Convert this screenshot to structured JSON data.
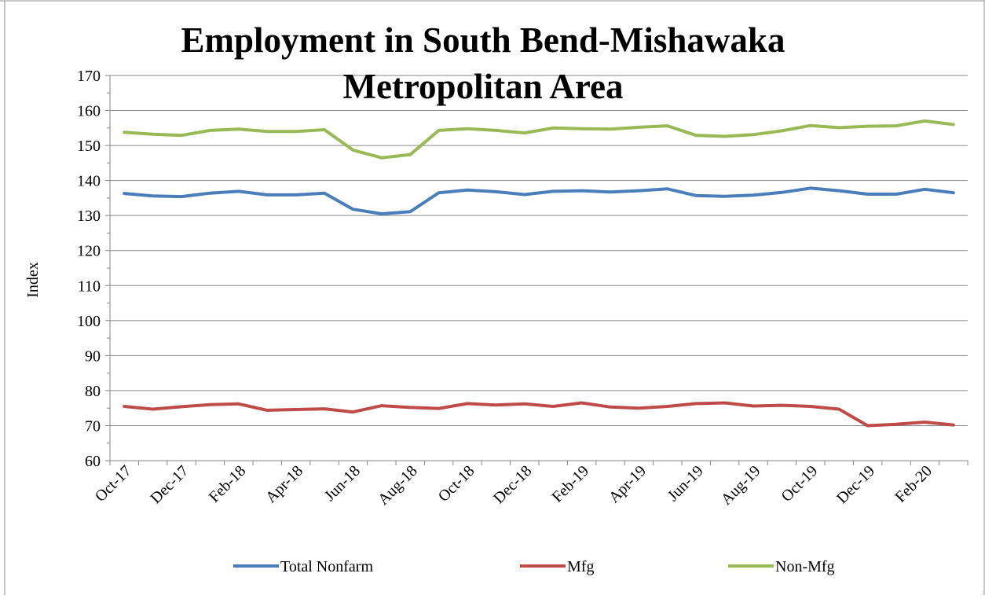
{
  "chart_data": {
    "type": "line",
    "title": "Employment in South Bend-Mishawaka Metropolitan Area",
    "title_lines": [
      "Employment in South Bend-Mishawaka",
      "Metropolitan Area"
    ],
    "ylabel": "Index",
    "xlabel": "",
    "ylim": [
      60,
      170
    ],
    "yticks": [
      60,
      70,
      80,
      90,
      100,
      110,
      120,
      130,
      140,
      150,
      160,
      170
    ],
    "grid": true,
    "legend_position": "bottom",
    "categories": [
      "Oct-17",
      "Nov-17",
      "Dec-17",
      "Jan-18",
      "Feb-18",
      "Mar-18",
      "Apr-18",
      "May-18",
      "Jun-18",
      "Jul-18",
      "Aug-18",
      "Sep-18",
      "Oct-18",
      "Nov-18",
      "Dec-18",
      "Jan-19",
      "Feb-19",
      "Mar-19",
      "Apr-19",
      "May-19",
      "Jun-19",
      "Jul-19",
      "Aug-19",
      "Sep-19",
      "Oct-19",
      "Nov-19",
      "Dec-19",
      "Jan-20",
      "Feb-20",
      "Mar-20"
    ],
    "x_tick_labels": [
      "Oct-17",
      "Dec-17",
      "Feb-18",
      "Apr-18",
      "Jun-18",
      "Aug-18",
      "Oct-18",
      "Dec-18",
      "Feb-19",
      "Apr-19",
      "Jun-19",
      "Aug-19",
      "Oct-19",
      "Dec-19",
      "Feb-20"
    ],
    "series": [
      {
        "name": "Total Nonfarm",
        "color": "#4a7ebb",
        "values": [
          136.3,
          135.6,
          135.4,
          136.4,
          136.9,
          135.9,
          135.9,
          136.4,
          131.8,
          130.5,
          131.1,
          136.5,
          137.3,
          136.8,
          136.0,
          136.9,
          137.1,
          136.7,
          137.1,
          137.6,
          135.7,
          135.5,
          135.8,
          136.6,
          137.8,
          137.1,
          136.1,
          136.1,
          137.5,
          136.5
        ]
      },
      {
        "name": "Mfg",
        "color": "#be4b48",
        "values": [
          75.5,
          74.7,
          75.4,
          76.0,
          76.2,
          74.4,
          74.6,
          74.8,
          73.9,
          75.7,
          75.2,
          74.9,
          76.3,
          75.9,
          76.2,
          75.5,
          76.5,
          75.3,
          75.0,
          75.5,
          76.3,
          76.5,
          75.6,
          75.8,
          75.5,
          74.7,
          70.0,
          70.4,
          71.0,
          70.2
        ]
      },
      {
        "name": "Non-Mfg",
        "color": "#98b954",
        "values": [
          153.8,
          153.2,
          152.9,
          154.3,
          154.7,
          154.0,
          154.0,
          154.5,
          148.7,
          146.5,
          147.4,
          154.3,
          154.8,
          154.3,
          153.6,
          155.0,
          154.8,
          154.7,
          155.2,
          155.6,
          152.9,
          152.6,
          153.1,
          154.2,
          155.7,
          155.1,
          155.5,
          155.6,
          157.0,
          156.0
        ]
      }
    ]
  }
}
